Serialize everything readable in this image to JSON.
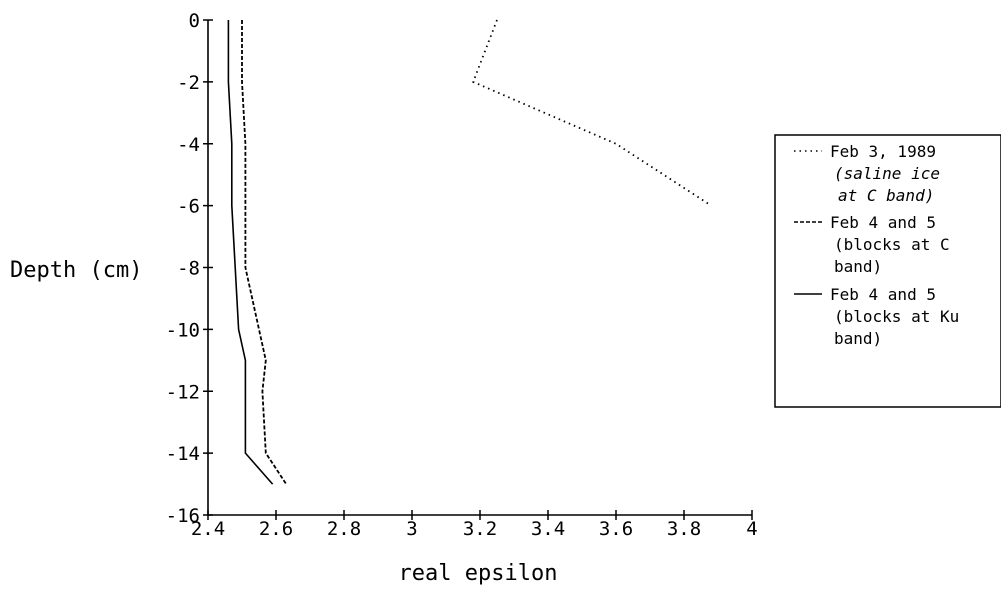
{
  "chart_data": {
    "type": "line",
    "xlabel": "real epsilon",
    "ylabel": "Depth (cm)",
    "xlim": [
      2.4,
      4
    ],
    "ylim": [
      -16,
      0
    ],
    "x_ticks": [
      "2.4",
      "2.6",
      "2.8",
      "3",
      "3.2",
      "3.4",
      "3.6",
      "3.8",
      "4"
    ],
    "y_ticks": [
      "0",
      "-2",
      "-4",
      "-6",
      "-8",
      "-10",
      "-12",
      "-14",
      "-16"
    ],
    "legend_position": "right",
    "series": [
      {
        "name": "Feb 3, 1989",
        "legend_lines": [
          "Feb 3, 1989",
          "(saline ice",
          "at C band)"
        ],
        "style": "dotted",
        "points": [
          [
            3.25,
            0
          ],
          [
            3.18,
            -2
          ],
          [
            3.6,
            -4
          ],
          [
            3.88,
            -6
          ]
        ]
      },
      {
        "name": "Feb 4 and 5",
        "legend_lines": [
          "Feb 4 and 5",
          "(blocks at C",
          "band)"
        ],
        "style": "dashed",
        "points": [
          [
            2.5,
            0
          ],
          [
            2.5,
            -2
          ],
          [
            2.51,
            -4
          ],
          [
            2.51,
            -6
          ],
          [
            2.51,
            -8
          ],
          [
            2.55,
            -10
          ],
          [
            2.57,
            -11
          ],
          [
            2.56,
            -12
          ],
          [
            2.57,
            -14
          ],
          [
            2.63,
            -15
          ]
        ]
      },
      {
        "name": "Feb 4 and 5",
        "legend_lines": [
          "Feb 4 and 5",
          "(blocks at Ku",
          "band)"
        ],
        "style": "solid",
        "points": [
          [
            2.46,
            0
          ],
          [
            2.46,
            -2
          ],
          [
            2.47,
            -4
          ],
          [
            2.47,
            -6
          ],
          [
            2.48,
            -8
          ],
          [
            2.49,
            -10
          ],
          [
            2.51,
            -11
          ],
          [
            2.51,
            -12
          ],
          [
            2.51,
            -14
          ],
          [
            2.59,
            -15
          ]
        ]
      }
    ]
  }
}
